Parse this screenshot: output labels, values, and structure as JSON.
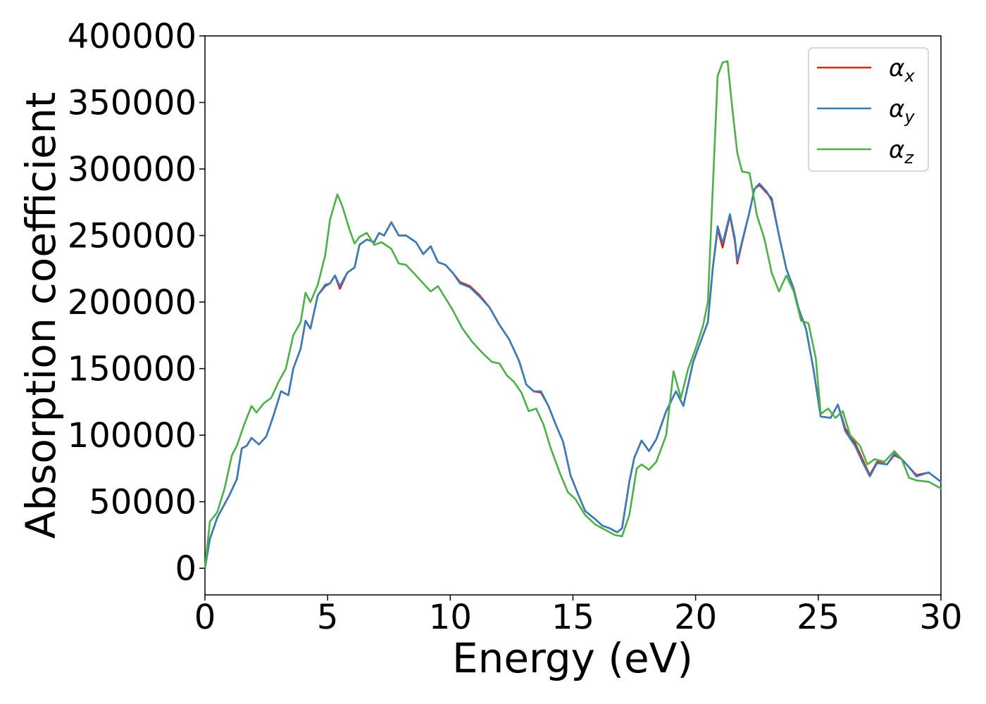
{
  "chart_data": {
    "type": "line",
    "title": "",
    "xlabel": "Energy (eV)",
    "ylabel": "Absorption coefficient",
    "xlim": [
      0,
      30
    ],
    "ylim": [
      -20000,
      400000
    ],
    "xticks": [
      0,
      5,
      10,
      15,
      20,
      25,
      30
    ],
    "yticks": [
      0,
      50000,
      100000,
      150000,
      200000,
      250000,
      300000,
      350000,
      400000
    ],
    "grid": false,
    "legend_position": "top-right",
    "series": [
      {
        "name": "α",
        "subscript": "x",
        "color": "#e41a1c",
        "points": [
          [
            0,
            0
          ],
          [
            0.2,
            22000
          ],
          [
            0.5,
            38000
          ],
          [
            1,
            55000
          ],
          [
            1.3,
            67000
          ],
          [
            1.5,
            90000
          ],
          [
            1.7,
            92000
          ],
          [
            1.9,
            98000
          ],
          [
            2.2,
            93000
          ],
          [
            2.5,
            99000
          ],
          [
            2.8,
            115000
          ],
          [
            3.1,
            133000
          ],
          [
            3.4,
            130000
          ],
          [
            3.6,
            150000
          ],
          [
            3.9,
            165000
          ],
          [
            4.1,
            186000
          ],
          [
            4.3,
            180000
          ],
          [
            4.6,
            205000
          ],
          [
            4.9,
            212000
          ],
          [
            5.1,
            214000
          ],
          [
            5.3,
            220000
          ],
          [
            5.5,
            210000
          ],
          [
            5.8,
            222000
          ],
          [
            6.1,
            226000
          ],
          [
            6.3,
            243000
          ],
          [
            6.6,
            247000
          ],
          [
            6.9,
            245000
          ],
          [
            7.1,
            252000
          ],
          [
            7.3,
            250000
          ],
          [
            7.6,
            260000
          ],
          [
            7.9,
            250000
          ],
          [
            8.2,
            250000
          ],
          [
            8.6,
            245000
          ],
          [
            8.9,
            236000
          ],
          [
            9.2,
            242000
          ],
          [
            9.5,
            230000
          ],
          [
            9.8,
            228000
          ],
          [
            10.1,
            222000
          ],
          [
            10.4,
            215000
          ],
          [
            10.8,
            212000
          ],
          [
            11.2,
            205000
          ],
          [
            11.6,
            196000
          ],
          [
            12,
            183000
          ],
          [
            12.4,
            172000
          ],
          [
            12.8,
            156000
          ],
          [
            13.1,
            138000
          ],
          [
            13.4,
            133000
          ],
          [
            13.7,
            132000
          ],
          [
            14,
            122000
          ],
          [
            14.3,
            108000
          ],
          [
            14.6,
            95000
          ],
          [
            14.9,
            70000
          ],
          [
            15.2,
            56000
          ],
          [
            15.5,
            43000
          ],
          [
            15.9,
            37000
          ],
          [
            16.2,
            32000
          ],
          [
            16.5,
            30000
          ],
          [
            16.8,
            27000
          ],
          [
            17.0,
            30000
          ],
          [
            17.3,
            65000
          ],
          [
            17.5,
            83000
          ],
          [
            17.8,
            96000
          ],
          [
            18.1,
            88000
          ],
          [
            18.4,
            97000
          ],
          [
            18.8,
            118000
          ],
          [
            19.2,
            133000
          ],
          [
            19.5,
            122000
          ],
          [
            19.9,
            155000
          ],
          [
            20.2,
            170000
          ],
          [
            20.5,
            185000
          ],
          [
            20.7,
            225000
          ],
          [
            20.9,
            255000
          ],
          [
            21.1,
            241000
          ],
          [
            21.4,
            265000
          ],
          [
            21.6,
            246000
          ],
          [
            21.7,
            229000
          ],
          [
            21.9,
            245000
          ],
          [
            22.2,
            268000
          ],
          [
            22.4,
            285000
          ],
          [
            22.6,
            288000
          ],
          [
            22.9,
            282000
          ],
          [
            23.1,
            278000
          ],
          [
            23.4,
            250000
          ],
          [
            23.7,
            225000
          ],
          [
            24.0,
            210000
          ],
          [
            24.2,
            195000
          ],
          [
            24.5,
            180000
          ],
          [
            24.8,
            150000
          ],
          [
            25.1,
            114000
          ],
          [
            25.5,
            113000
          ],
          [
            25.8,
            123000
          ],
          [
            26.1,
            105000
          ],
          [
            26.5,
            94000
          ],
          [
            26.8,
            82000
          ],
          [
            27.1,
            70000
          ],
          [
            27.4,
            80000
          ],
          [
            27.8,
            78000
          ],
          [
            28.1,
            85000
          ],
          [
            28.4,
            82000
          ],
          [
            28.7,
            76000
          ],
          [
            29.0,
            70000
          ],
          [
            29.5,
            72000
          ],
          [
            30,
            65000
          ]
        ]
      },
      {
        "name": "α",
        "subscript": "y",
        "color": "#377eb8",
        "points": [
          [
            0,
            0
          ],
          [
            0.2,
            22000
          ],
          [
            0.5,
            38000
          ],
          [
            1,
            55000
          ],
          [
            1.3,
            67000
          ],
          [
            1.5,
            90000
          ],
          [
            1.7,
            92000
          ],
          [
            1.9,
            98000
          ],
          [
            2.2,
            93000
          ],
          [
            2.5,
            99000
          ],
          [
            2.8,
            115000
          ],
          [
            3.1,
            133000
          ],
          [
            3.4,
            130000
          ],
          [
            3.6,
            150000
          ],
          [
            3.9,
            165000
          ],
          [
            4.1,
            186000
          ],
          [
            4.3,
            180000
          ],
          [
            4.6,
            205000
          ],
          [
            4.9,
            213000
          ],
          [
            5.1,
            214000
          ],
          [
            5.3,
            220000
          ],
          [
            5.5,
            212000
          ],
          [
            5.8,
            222000
          ],
          [
            6.1,
            226000
          ],
          [
            6.3,
            243000
          ],
          [
            6.6,
            247000
          ],
          [
            6.9,
            245000
          ],
          [
            7.1,
            252000
          ],
          [
            7.3,
            250000
          ],
          [
            7.6,
            260000
          ],
          [
            7.9,
            250000
          ],
          [
            8.2,
            250000
          ],
          [
            8.6,
            245000
          ],
          [
            8.9,
            236000
          ],
          [
            9.2,
            242000
          ],
          [
            9.5,
            230000
          ],
          [
            9.8,
            228000
          ],
          [
            10.1,
            222000
          ],
          [
            10.4,
            214000
          ],
          [
            10.8,
            211000
          ],
          [
            11.2,
            204000
          ],
          [
            11.6,
            196000
          ],
          [
            12,
            183000
          ],
          [
            12.4,
            172000
          ],
          [
            12.8,
            156000
          ],
          [
            13.1,
            138000
          ],
          [
            13.4,
            133000
          ],
          [
            13.7,
            133000
          ],
          [
            14,
            122000
          ],
          [
            14.3,
            108000
          ],
          [
            14.6,
            95000
          ],
          [
            14.9,
            70000
          ],
          [
            15.2,
            56000
          ],
          [
            15.5,
            43000
          ],
          [
            15.9,
            37000
          ],
          [
            16.2,
            32000
          ],
          [
            16.5,
            30000
          ],
          [
            16.8,
            27000
          ],
          [
            17.0,
            30000
          ],
          [
            17.3,
            65000
          ],
          [
            17.5,
            83000
          ],
          [
            17.8,
            96000
          ],
          [
            18.1,
            88000
          ],
          [
            18.4,
            97000
          ],
          [
            18.8,
            118000
          ],
          [
            19.2,
            133000
          ],
          [
            19.5,
            122000
          ],
          [
            19.9,
            155000
          ],
          [
            20.2,
            170000
          ],
          [
            20.5,
            185000
          ],
          [
            20.7,
            225000
          ],
          [
            20.9,
            257000
          ],
          [
            21.1,
            244000
          ],
          [
            21.4,
            266000
          ],
          [
            21.6,
            248000
          ],
          [
            21.7,
            231000
          ],
          [
            21.9,
            246000
          ],
          [
            22.2,
            268000
          ],
          [
            22.4,
            285000
          ],
          [
            22.6,
            289000
          ],
          [
            22.9,
            283000
          ],
          [
            23.1,
            276000
          ],
          [
            23.4,
            250000
          ],
          [
            23.7,
            225000
          ],
          [
            24.0,
            210000
          ],
          [
            24.2,
            195000
          ],
          [
            24.5,
            180000
          ],
          [
            24.8,
            150000
          ],
          [
            25.1,
            114000
          ],
          [
            25.5,
            113000
          ],
          [
            25.8,
            123000
          ],
          [
            26.1,
            103000
          ],
          [
            26.5,
            92000
          ],
          [
            26.8,
            80000
          ],
          [
            27.1,
            69000
          ],
          [
            27.4,
            79000
          ],
          [
            27.8,
            78000
          ],
          [
            28.1,
            86000
          ],
          [
            28.4,
            82000
          ],
          [
            28.7,
            76000
          ],
          [
            29.0,
            69000
          ],
          [
            29.5,
            72000
          ],
          [
            30,
            65000
          ]
        ]
      },
      {
        "name": "α",
        "subscript": "z",
        "color": "#4daf4a",
        "points": [
          [
            0,
            0
          ],
          [
            0.2,
            35000
          ],
          [
            0.5,
            42000
          ],
          [
            0.8,
            60000
          ],
          [
            1.1,
            85000
          ],
          [
            1.3,
            92000
          ],
          [
            1.6,
            108000
          ],
          [
            1.9,
            122000
          ],
          [
            2.1,
            117000
          ],
          [
            2.4,
            124000
          ],
          [
            2.7,
            128000
          ],
          [
            3.0,
            140000
          ],
          [
            3.3,
            150000
          ],
          [
            3.6,
            175000
          ],
          [
            3.9,
            185000
          ],
          [
            4.1,
            207000
          ],
          [
            4.3,
            200000
          ],
          [
            4.6,
            213000
          ],
          [
            4.9,
            235000
          ],
          [
            5.1,
            262000
          ],
          [
            5.4,
            281000
          ],
          [
            5.6,
            272000
          ],
          [
            5.9,
            254000
          ],
          [
            6.1,
            244000
          ],
          [
            6.3,
            249000
          ],
          [
            6.6,
            252000
          ],
          [
            6.9,
            243000
          ],
          [
            7.2,
            245000
          ],
          [
            7.6,
            240000
          ],
          [
            7.9,
            229000
          ],
          [
            8.2,
            228000
          ],
          [
            8.6,
            220000
          ],
          [
            8.9,
            214000
          ],
          [
            9.2,
            208000
          ],
          [
            9.5,
            212000
          ],
          [
            9.8,
            203000
          ],
          [
            10.1,
            194000
          ],
          [
            10.5,
            180000
          ],
          [
            10.9,
            170000
          ],
          [
            11.3,
            162000
          ],
          [
            11.7,
            155000
          ],
          [
            12,
            154000
          ],
          [
            12.3,
            145000
          ],
          [
            12.6,
            140000
          ],
          [
            12.9,
            132000
          ],
          [
            13.2,
            118000
          ],
          [
            13.5,
            120000
          ],
          [
            13.8,
            108000
          ],
          [
            14.1,
            90000
          ],
          [
            14.5,
            70000
          ],
          [
            14.8,
            57000
          ],
          [
            15.1,
            52000
          ],
          [
            15.5,
            40000
          ],
          [
            15.9,
            33000
          ],
          [
            16.3,
            29000
          ],
          [
            16.7,
            25000
          ],
          [
            17.0,
            24000
          ],
          [
            17.3,
            40000
          ],
          [
            17.6,
            75000
          ],
          [
            17.8,
            78000
          ],
          [
            18.1,
            74000
          ],
          [
            18.4,
            80000
          ],
          [
            18.8,
            100000
          ],
          [
            19.1,
            148000
          ],
          [
            19.4,
            128000
          ],
          [
            19.7,
            150000
          ],
          [
            20.0,
            165000
          ],
          [
            20.3,
            182000
          ],
          [
            20.5,
            200000
          ],
          [
            20.7,
            285000
          ],
          [
            20.9,
            370000
          ],
          [
            21.1,
            380000
          ],
          [
            21.3,
            381000
          ],
          [
            21.5,
            345000
          ],
          [
            21.7,
            312000
          ],
          [
            21.9,
            298000
          ],
          [
            22.2,
            297000
          ],
          [
            22.5,
            265000
          ],
          [
            22.8,
            248000
          ],
          [
            23.1,
            222000
          ],
          [
            23.4,
            208000
          ],
          [
            23.7,
            220000
          ],
          [
            24.0,
            208000
          ],
          [
            24.3,
            186000
          ],
          [
            24.6,
            184000
          ],
          [
            24.9,
            158000
          ],
          [
            25.1,
            116000
          ],
          [
            25.4,
            120000
          ],
          [
            25.7,
            113000
          ],
          [
            26.0,
            118000
          ],
          [
            26.3,
            100000
          ],
          [
            26.7,
            92000
          ],
          [
            27.0,
            78000
          ],
          [
            27.3,
            82000
          ],
          [
            27.7,
            80000
          ],
          [
            28.1,
            88000
          ],
          [
            28.4,
            82000
          ],
          [
            28.7,
            68000
          ],
          [
            29.0,
            66000
          ],
          [
            29.5,
            65000
          ],
          [
            30,
            60000
          ]
        ]
      }
    ]
  }
}
